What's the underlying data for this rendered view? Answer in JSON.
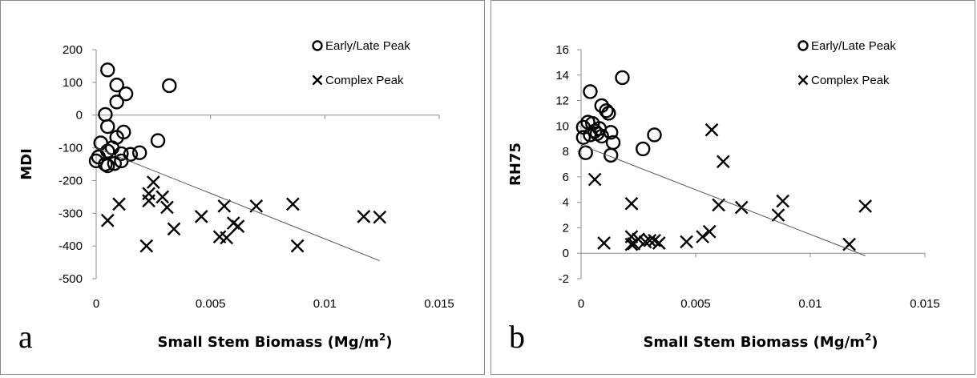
{
  "chart_data": [
    {
      "panel_label": "a",
      "type": "scatter",
      "xlabel": "Small Stem Biomass (Mg/m",
      "xlabel_sup": "2",
      "xlabel_suffix": ")",
      "ylabel": "MDI",
      "xlim": [
        0,
        0.015
      ],
      "ylim": [
        -500,
        200
      ],
      "x_ticks": [
        0,
        0.005,
        0.01,
        0.015
      ],
      "x_tick_labels": [
        "0",
        "0.005",
        "0.01",
        "0.015"
      ],
      "y_ticks": [
        200,
        100,
        0,
        -100,
        -200,
        -300,
        -400,
        -500
      ],
      "y_tick_labels": [
        "200",
        "100",
        "0",
        "-100",
        "-200",
        "-300",
        "-400",
        "-500"
      ],
      "legend": [
        "Early/Late Peak",
        "Complex Peak"
      ],
      "series": [
        {
          "name": "Early/Late Peak",
          "marker": "circle",
          "points": [
            [
              0.0005,
              138
            ],
            [
              0.0009,
              92
            ],
            [
              0.0013,
              65
            ],
            [
              0.0032,
              90
            ],
            [
              0.0009,
              40
            ],
            [
              0.0004,
              2
            ],
            [
              0.0005,
              -35
            ],
            [
              0.0012,
              -52
            ],
            [
              0.0009,
              -68
            ],
            [
              0.0027,
              -78
            ],
            [
              0.0002,
              -85
            ],
            [
              0.0007,
              -100
            ],
            [
              0.0005,
              -110
            ],
            [
              0.0011,
              -118
            ],
            [
              0.0015,
              -120
            ],
            [
              0.0019,
              -115
            ],
            [
              0.0001,
              -128
            ],
            [
              0.0,
              -140
            ],
            [
              0.0011,
              -140
            ],
            [
              0.0008,
              -148
            ],
            [
              0.0004,
              -150
            ],
            [
              0.0005,
              -155
            ]
          ]
        },
        {
          "name": "Complex Peak",
          "marker": "x",
          "points": [
            [
              0.0025,
              -205
            ],
            [
              0.0023,
              -240
            ],
            [
              0.0029,
              -250
            ],
            [
              0.0023,
              -262
            ],
            [
              0.001,
              -272
            ],
            [
              0.0031,
              -282
            ],
            [
              0.0046,
              -310
            ],
            [
              0.0056,
              -278
            ],
            [
              0.007,
              -278
            ],
            [
              0.0086,
              -272
            ],
            [
              0.0005,
              -322
            ],
            [
              0.006,
              -330
            ],
            [
              0.0062,
              -340
            ],
            [
              0.0034,
              -348
            ],
            [
              0.0054,
              -372
            ],
            [
              0.0057,
              -375
            ],
            [
              0.0022,
              -400
            ],
            [
              0.0088,
              -400
            ],
            [
              0.0117,
              -310
            ],
            [
              0.0124,
              -312
            ]
          ]
        },
        {
          "name": "trend",
          "marker": "line",
          "points": [
            [
              0.0,
              -100
            ],
            [
              0.0124,
              -445
            ]
          ]
        }
      ]
    },
    {
      "panel_label": "b",
      "type": "scatter",
      "xlabel": "Small Stem Biomass (Mg/m",
      "xlabel_sup": "2",
      "xlabel_suffix": ")",
      "ylabel": "RH75",
      "xlim": [
        0,
        0.015
      ],
      "ylim": [
        -2,
        16
      ],
      "x_ticks": [
        0,
        0.005,
        0.01,
        0.015
      ],
      "x_tick_labels": [
        "0",
        "0.005",
        "0.01",
        "0.015"
      ],
      "y_ticks": [
        16,
        14,
        12,
        10,
        8,
        6,
        4,
        2,
        0,
        -2
      ],
      "y_tick_labels": [
        "16",
        "14",
        "12",
        "10",
        "8",
        "6",
        "4",
        "2",
        "0",
        "-2"
      ],
      "legend": [
        "Early/Late Peak",
        "Complex Peak"
      ],
      "series": [
        {
          "name": "Early/Late Peak",
          "marker": "circle",
          "points": [
            [
              0.0018,
              13.8
            ],
            [
              0.0004,
              12.7
            ],
            [
              0.0009,
              11.6
            ],
            [
              0.0011,
              11.2
            ],
            [
              0.0012,
              11.0
            ],
            [
              0.0003,
              10.3
            ],
            [
              0.0005,
              10.2
            ],
            [
              0.0001,
              9.9
            ],
            [
              0.0008,
              9.8
            ],
            [
              0.0013,
              9.5
            ],
            [
              0.0006,
              9.6
            ],
            [
              0.0004,
              9.3
            ],
            [
              0.0032,
              9.3
            ],
            [
              0.0001,
              9.1
            ],
            [
              0.0007,
              9.4
            ],
            [
              0.0009,
              9.2
            ],
            [
              0.0014,
              8.7
            ],
            [
              0.0027,
              8.2
            ],
            [
              0.0002,
              7.9
            ],
            [
              0.0013,
              7.7
            ]
          ]
        },
        {
          "name": "Complex Peak",
          "marker": "x",
          "points": [
            [
              0.0057,
              9.7
            ],
            [
              0.0062,
              7.2
            ],
            [
              0.0006,
              5.8
            ],
            [
              0.0022,
              3.9
            ],
            [
              0.006,
              3.8
            ],
            [
              0.007,
              3.6
            ],
            [
              0.0124,
              3.7
            ],
            [
              0.0088,
              4.1
            ],
            [
              0.0086,
              3.0
            ],
            [
              0.0056,
              1.7
            ],
            [
              0.0053,
              1.3
            ],
            [
              0.0022,
              1.3
            ],
            [
              0.0025,
              1.1
            ],
            [
              0.003,
              1.0
            ],
            [
              0.0032,
              1.0
            ],
            [
              0.0028,
              0.9
            ],
            [
              0.0034,
              0.8
            ],
            [
              0.0046,
              0.9
            ],
            [
              0.0023,
              0.75
            ],
            [
              0.0022,
              0.7
            ],
            [
              0.001,
              0.8
            ],
            [
              0.0117,
              0.7
            ]
          ]
        },
        {
          "name": "trend",
          "marker": "line",
          "points": [
            [
              0.0,
              8.5
            ],
            [
              0.0124,
              -0.2
            ]
          ]
        }
      ]
    }
  ]
}
